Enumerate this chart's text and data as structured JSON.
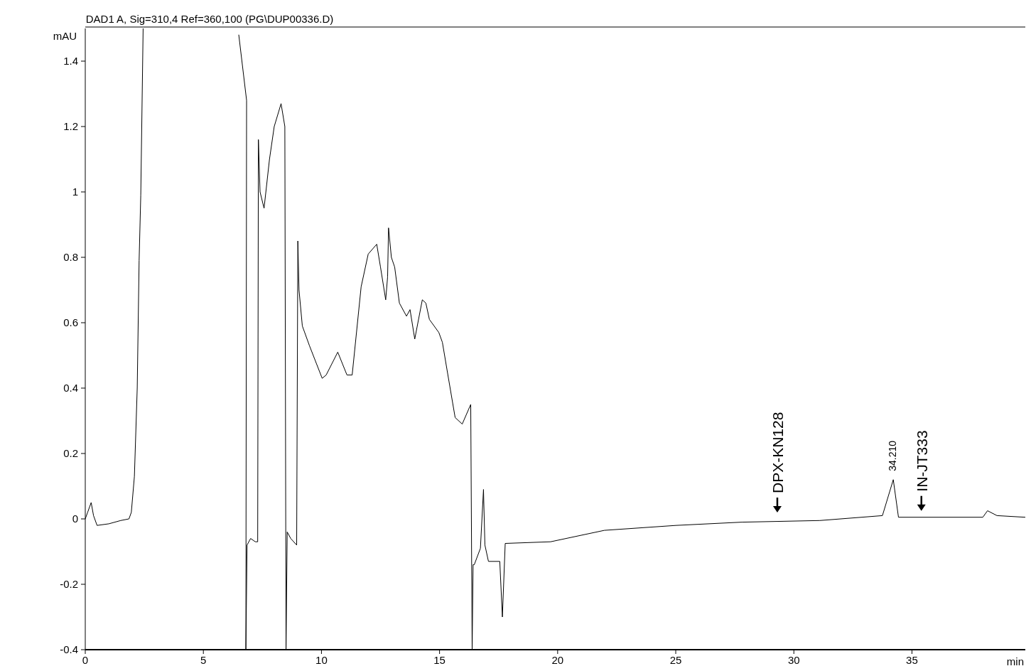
{
  "chart_data": {
    "type": "line",
    "title": "DAD1 A, Sig=310,4 Ref=360,100 (PG\\DUP00336.D)",
    "xlabel": "min",
    "ylabel": "mAU",
    "xlim": [
      0,
      39.8
    ],
    "ylim": [
      -0.4,
      1.5
    ],
    "xticks": [
      0,
      5,
      10,
      15,
      20,
      25,
      30,
      35
    ],
    "yticks": [
      -0.4,
      -0.2,
      0,
      0.2,
      0.4,
      0.6,
      0.8,
      1,
      1.2,
      1.4
    ],
    "grid": false,
    "marker": "none",
    "line_style": "solid",
    "series": [
      {
        "color": "#000000",
        "x": [
          0,
          0.1,
          0.25,
          0.35,
          0.5,
          1.0,
          1.5,
          1.85,
          1.95,
          2.08,
          2.2,
          2.28,
          2.35,
          2.45,
          2.5,
          6.45,
          6.5,
          6.83,
          6.8,
          6.85,
          7.0,
          7.2,
          7.3,
          7.33,
          7.4,
          7.57,
          7.8,
          8.0,
          8.29,
          8.45,
          8.5,
          8.55,
          8.7,
          8.95,
          9.0,
          9.05,
          9.19,
          9.49,
          10.03,
          10.2,
          10.69,
          11.08,
          11.3,
          11.68,
          11.98,
          12.34,
          12.5,
          12.72,
          12.8,
          12.84,
          12.96,
          13.1,
          13.3,
          13.6,
          13.75,
          13.95,
          14.27,
          14.42,
          14.57,
          14.97,
          15.12,
          15.33,
          15.66,
          15.96,
          16.32,
          16.38,
          16.42,
          16.47,
          16.73,
          16.86,
          16.92,
          17.07,
          17.55,
          17.66,
          17.78,
          19.7,
          21.98,
          25.0,
          27.8,
          31.1,
          33.75,
          34.21,
          34.43,
          38.0,
          38.2,
          38.6,
          39.8
        ],
        "values": [
          0,
          0.02,
          0.05,
          0.01,
          -0.02,
          -0.015,
          -0.005,
          0,
          0.02,
          0.13,
          0.4,
          0.79,
          0.99,
          1.5,
          null,
          null,
          1.48,
          1.28,
          -0.4,
          -0.08,
          -0.06,
          -0.07,
          -0.07,
          1.16,
          1.0,
          0.95,
          1.1,
          1.2,
          1.27,
          1.2,
          -0.4,
          -0.04,
          -0.06,
          -0.08,
          0.85,
          0.7,
          0.59,
          0.53,
          0.43,
          0.44,
          0.51,
          0.44,
          0.44,
          0.71,
          0.81,
          0.84,
          0.77,
          0.67,
          0.74,
          0.89,
          0.8,
          0.77,
          0.66,
          0.62,
          0.64,
          0.55,
          0.67,
          0.66,
          0.61,
          0.57,
          0.54,
          0.45,
          0.31,
          0.29,
          0.35,
          -0.4,
          -0.14,
          -0.14,
          -0.09,
          0.09,
          -0.08,
          -0.13,
          -0.13,
          -0.3,
          -0.075,
          -0.07,
          -0.035,
          -0.02,
          -0.01,
          -0.005,
          0.01,
          0.12,
          0.005,
          0.005,
          0.025,
          0.01,
          0.005
        ]
      }
    ],
    "annotations": [
      {
        "text": "DPX-KN128",
        "x": 29.3,
        "y": 0
      },
      {
        "text": "34.210",
        "x": 34.21,
        "y": 0.12
      },
      {
        "text": "IN-JT333",
        "x": 35.4,
        "y": 0.005
      }
    ]
  }
}
